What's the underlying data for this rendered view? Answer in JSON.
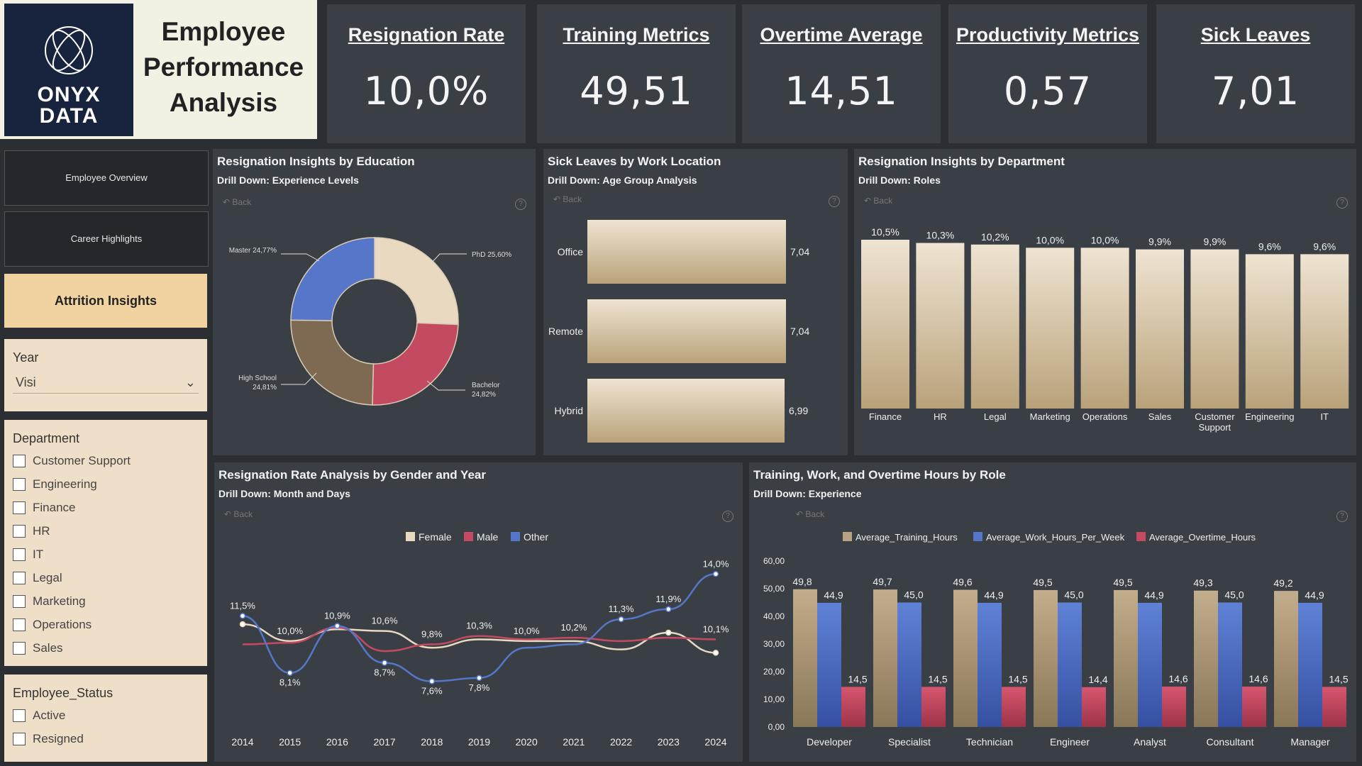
{
  "header": {
    "logo_text_line1": "ONYX",
    "logo_text_line2": "DATA",
    "title_line1": "Employee",
    "title_line2": "Performance",
    "title_line3": "Analysis"
  },
  "kpis": [
    {
      "title": "Resignation Rate",
      "value": "10,0%"
    },
    {
      "title": "Training Metrics",
      "value": "49,51"
    },
    {
      "title": "Overtime Average",
      "value": "14,51"
    },
    {
      "title": "Productivity Metrics",
      "value": "0,57"
    },
    {
      "title": "Sick Leaves",
      "value": "7,01"
    }
  ],
  "nav": {
    "employee_overview": "Employee Overview",
    "career_highlights": "Career Highlights",
    "attrition_insights": "Attrition Insights"
  },
  "filters": {
    "year_title": "Year",
    "year_value": "Visi",
    "department_title": "Department",
    "departments": [
      "Customer Support",
      "Engineering",
      "Finance",
      "HR",
      "IT",
      "Legal",
      "Marketing",
      "Operations",
      "Sales"
    ],
    "status_title": "Employee_Status",
    "statuses": [
      "Active",
      "Resigned"
    ]
  },
  "common": {
    "back_label": "Back",
    "help_glyph": "?"
  },
  "colors": {
    "cream": "#e8d9c0",
    "tan": "#b7a283",
    "blue": "#5576c9",
    "rose": "#c44a61",
    "brown": "#7e6a52"
  },
  "chart_data": [
    {
      "type": "pie",
      "title": "Resignation Insights by Education",
      "subtitle": "Drill Down: Experience Levels",
      "labels": [
        "PhD",
        "Bachelor",
        "High School",
        "Master"
      ],
      "values": [
        25.6,
        24.82,
        24.81,
        24.77
      ],
      "display": [
        "PhD 25,60%",
        "Bachelor 24,82%",
        "High School 24,81%",
        "Master 24,77%"
      ]
    },
    {
      "type": "bar",
      "orientation": "horizontal",
      "title": "Sick Leaves by Work Location",
      "subtitle": "Drill Down: Age Group Analysis",
      "categories": [
        "Office",
        "Remote",
        "Hybrid"
      ],
      "values": [
        7.04,
        7.04,
        6.99
      ],
      "display": [
        "7,04",
        "7,04",
        "6,99"
      ]
    },
    {
      "type": "bar",
      "title": "Resignation Insights by Department",
      "subtitle": "Drill Down: Roles",
      "categories": [
        "Finance",
        "HR",
        "Legal",
        "Marketing",
        "Operations",
        "Sales",
        "Customer Support",
        "Engineering",
        "IT"
      ],
      "values": [
        10.5,
        10.3,
        10.2,
        10.0,
        10.0,
        9.9,
        9.9,
        9.6,
        9.6
      ],
      "display": [
        "10,5%",
        "10,3%",
        "10,2%",
        "10,0%",
        "10,0%",
        "9,9%",
        "9,9%",
        "9,6%",
        "9,6%"
      ]
    },
    {
      "type": "line",
      "title": "Resignation Rate Analysis by Gender and Year",
      "subtitle": "Drill Down: Month and Days",
      "x": [
        "2014",
        "2015",
        "2016",
        "2017",
        "2018",
        "2019",
        "2020",
        "2021",
        "2022",
        "2023",
        "2024"
      ],
      "ylim": [
        5,
        16
      ],
      "series": [
        {
          "name": "Female",
          "values": [
            11.0,
            10.0,
            10.7,
            10.6,
            9.6,
            10.1,
            10.0,
            10.0,
            9.5,
            10.5,
            9.3
          ]
        },
        {
          "name": "Male",
          "values": [
            9.8,
            9.9,
            10.8,
            9.4,
            9.8,
            10.3,
            10.1,
            10.2,
            10.0,
            10.2,
            10.1
          ]
        },
        {
          "name": "Other",
          "values": [
            11.5,
            8.1,
            10.9,
            8.7,
            7.6,
            7.8,
            9.6,
            9.8,
            11.3,
            11.9,
            14.0
          ]
        }
      ],
      "data_labels": [
        {
          "series": "Other",
          "index": 0,
          "text": "11,5%"
        },
        {
          "series": "Female",
          "index": 1,
          "text": "10,0%"
        },
        {
          "series": "Other",
          "index": 1,
          "text": "8,1%"
        },
        {
          "series": "Other",
          "index": 2,
          "text": "10,9%"
        },
        {
          "series": "Female",
          "index": 3,
          "text": "10,6%"
        },
        {
          "series": "Other",
          "index": 3,
          "text": "8,7%"
        },
        {
          "series": "Male",
          "index": 4,
          "text": "9,8%"
        },
        {
          "series": "Other",
          "index": 4,
          "text": "7,6%"
        },
        {
          "series": "Male",
          "index": 5,
          "text": "10,3%"
        },
        {
          "series": "Other",
          "index": 5,
          "text": "7,8%"
        },
        {
          "series": "Female",
          "index": 6,
          "text": "10,0%"
        },
        {
          "series": "Male",
          "index": 7,
          "text": "10,2%"
        },
        {
          "series": "Other",
          "index": 8,
          "text": "11,3%"
        },
        {
          "series": "Other",
          "index": 9,
          "text": "11,9%"
        },
        {
          "series": "Other",
          "index": 10,
          "text": "14,0%"
        },
        {
          "series": "Male",
          "index": 10,
          "text": "10,1%"
        }
      ]
    },
    {
      "type": "bar",
      "title": "Training, Work, and Overtime Hours by Role",
      "subtitle": "Drill Down: Experience",
      "categories": [
        "Developer",
        "Specialist",
        "Technician",
        "Engineer",
        "Analyst",
        "Consultant",
        "Manager"
      ],
      "ylim": [
        0,
        60
      ],
      "yticks": [
        "0,00",
        "10,00",
        "20,00",
        "30,00",
        "40,00",
        "50,00",
        "60,00"
      ],
      "series": [
        {
          "name": "Average_Training_Hours",
          "values": [
            49.8,
            49.7,
            49.6,
            49.5,
            49.5,
            49.3,
            49.2
          ],
          "display": [
            "49,8",
            "49,7",
            "49,6",
            "49,5",
            "49,5",
            "49,3",
            "49,2"
          ]
        },
        {
          "name": "Average_Work_Hours_Per_Week",
          "values": [
            44.9,
            45.0,
            44.9,
            45.0,
            44.9,
            45.0,
            44.9
          ],
          "display": [
            "44,9",
            "45,0",
            "44,9",
            "45,0",
            "44,9",
            "45,0",
            "44,9"
          ]
        },
        {
          "name": "Average_Overtime_Hours",
          "values": [
            14.5,
            14.5,
            14.5,
            14.4,
            14.6,
            14.6,
            14.5
          ],
          "display": [
            "14,5",
            "14,5",
            "14,5",
            "14,4",
            "14,6",
            "14,6",
            "14,5"
          ]
        }
      ]
    }
  ]
}
